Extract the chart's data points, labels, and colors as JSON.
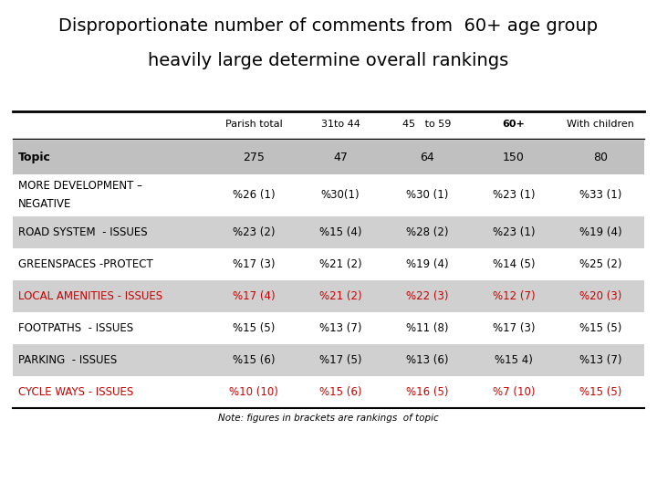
{
  "title_line1": "Disproportionate number of comments from  60+ age group",
  "title_line2": "heavily large determine overall rankings",
  "columns": [
    "Parish total",
    "31to 44",
    "45   to 59",
    "60+",
    "With children"
  ],
  "header_row": [
    "Topic",
    "275",
    "47",
    "64",
    "150",
    "80"
  ],
  "rows": [
    {
      "label_lines": [
        "MORE DEVELOPMENT –",
        "NEGATIVE"
      ],
      "values": [
        "%26 (1)",
        "%30(1)",
        "%30 (1)",
        "%23 (1)",
        "%33 (1)"
      ],
      "color": "black",
      "bg": "#ffffff"
    },
    {
      "label_lines": [
        "ROAD SYSTEM  - ISSUES"
      ],
      "values": [
        "%23 (2)",
        "%15 (4)",
        "%28 (2)",
        "%23 (1)",
        "%19 (4)"
      ],
      "color": "black",
      "bg": "#d0d0d0"
    },
    {
      "label_lines": [
        "GREENSPACES -PROTECT"
      ],
      "values": [
        "%17 (3)",
        "%21 (2)",
        "%19 (4)",
        "%14 (5)",
        "%25 (2)"
      ],
      "color": "black",
      "bg": "#ffffff"
    },
    {
      "label_lines": [
        "LOCAL AMENITIES - ISSUES"
      ],
      "values": [
        "%17 (4)",
        "%21 (2)",
        "%22 (3)",
        "%12 (7)",
        "%20 (3)"
      ],
      "color": "#cc0000",
      "bg": "#d0d0d0"
    },
    {
      "label_lines": [
        "FOOTPATHS  - ISSUES"
      ],
      "values": [
        "%15 (5)",
        "%13 (7)",
        "%11 (8)",
        "%17 (3)",
        "%15 (5)"
      ],
      "color": "black",
      "bg": "#ffffff"
    },
    {
      "label_lines": [
        "PARKING  - ISSUES"
      ],
      "values": [
        "%15 (6)",
        "%17 (5)",
        "%13 (6)",
        "%15 4)",
        "%13 (7)"
      ],
      "color": "black",
      "bg": "#d0d0d0"
    },
    {
      "label_lines": [
        "CYCLE WAYS - ISSUES"
      ],
      "values": [
        "%10 (10)",
        "%15 (6)",
        "%16 (5)",
        "%7 (10)",
        "%15 (5)"
      ],
      "color": "#cc0000",
      "bg": "#ffffff"
    }
  ],
  "note": "Note: figures in brackets are rankings  of topic",
  "bg_color": "#ffffff",
  "header_bg": "#c0c0c0",
  "col_header_bold": "60+"
}
